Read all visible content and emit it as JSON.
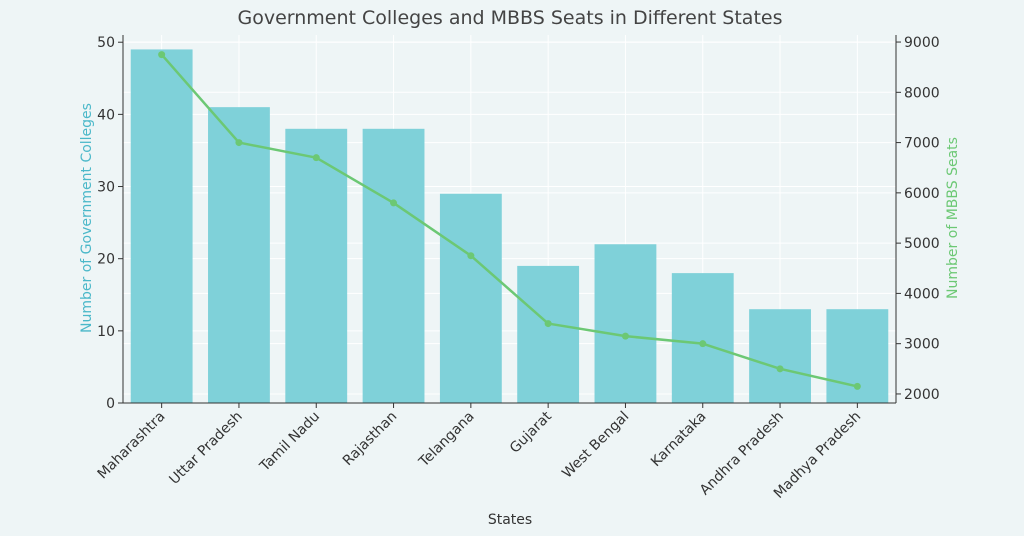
{
  "chart_data": {
    "type": "bar",
    "title": "Government Colleges and MBBS Seats in Different States",
    "xlabel": "States",
    "ylabel": "Number of Government Colleges",
    "y2label": "Number of MBBS Seats",
    "categories": [
      "Maharashtra",
      "Uttar Pradesh",
      "Tamil Nadu",
      "Rajasthan",
      "Telangana",
      "Gujarat",
      "West Bengal",
      "Karnataka",
      "Andhra Pradesh",
      "Madhya Pradesh"
    ],
    "series": [
      {
        "type": "bar",
        "axis": "left",
        "values": [
          49,
          41,
          38,
          38,
          29,
          19,
          22,
          18,
          13,
          13
        ],
        "color": "#7fd1d9"
      },
      {
        "type": "line",
        "axis": "right",
        "values": [
          8750,
          7000,
          6700,
          5800,
          4750,
          3400,
          3150,
          3000,
          2500,
          2150
        ],
        "color": "#6cc874"
      }
    ],
    "ylim": [
      0,
      51
    ],
    "y2lim": [
      1820,
      9140
    ],
    "yticks": [
      0,
      10,
      20,
      30,
      40,
      50
    ],
    "y2ticks": [
      2000,
      3000,
      4000,
      5000,
      6000,
      7000,
      8000,
      9000
    ],
    "grid": true,
    "legend": "none",
    "colors": {
      "ylabel": "#4bb8c9",
      "y2label": "#6cc874",
      "axis": "#333333",
      "grid": "#ffffff"
    }
  }
}
